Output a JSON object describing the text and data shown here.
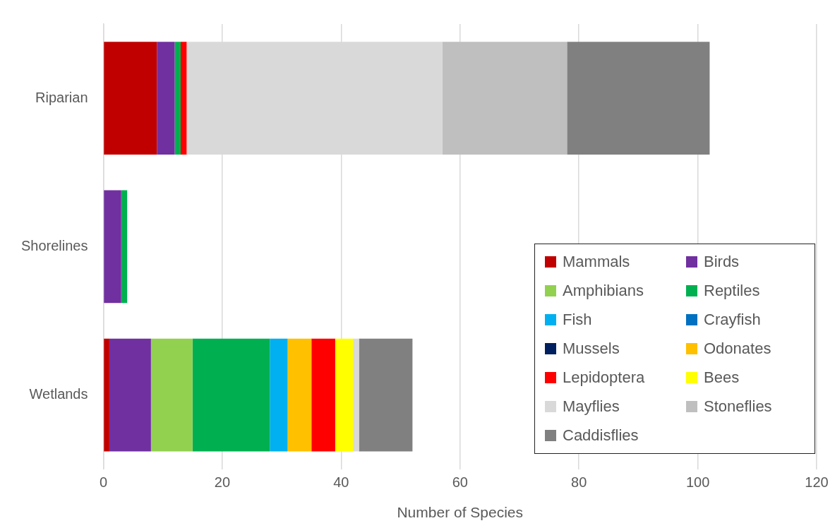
{
  "chart_data": {
    "type": "bar",
    "orientation": "horizontal",
    "stacked": true,
    "xlabel": "Number of Species",
    "categories": [
      "Riparian",
      "Shorelines",
      "Wetlands"
    ],
    "xlim": [
      0,
      120
    ],
    "xticks": [
      0,
      20,
      40,
      60,
      80,
      100,
      120
    ],
    "grid": "x",
    "legend": "bottom right",
    "series": [
      {
        "name": "Mammals",
        "color": "#c00000",
        "values": [
          9,
          0,
          1
        ]
      },
      {
        "name": "Birds",
        "color": "#7030a0",
        "values": [
          3,
          3,
          7
        ]
      },
      {
        "name": "Amphibians",
        "color": "#92d050",
        "values": [
          0,
          0,
          7
        ]
      },
      {
        "name": "Reptiles",
        "color": "#00b050",
        "values": [
          1,
          1,
          13
        ]
      },
      {
        "name": "Fish",
        "color": "#00b0f0",
        "values": [
          0,
          0,
          3
        ]
      },
      {
        "name": "Crayfish",
        "color": "#0070c0",
        "values": [
          0,
          0,
          0
        ]
      },
      {
        "name": "Mussels",
        "color": "#002060",
        "values": [
          0,
          0,
          0
        ]
      },
      {
        "name": "Odonates",
        "color": "#ffc000",
        "values": [
          0,
          0,
          4
        ]
      },
      {
        "name": "Lepidoptera",
        "color": "#ff0000",
        "values": [
          1,
          0,
          4
        ]
      },
      {
        "name": "Bees",
        "color": "#ffff00",
        "values": [
          0,
          0,
          3
        ]
      },
      {
        "name": "Mayflies",
        "color": "#d9d9d9",
        "values": [
          43,
          0,
          1
        ]
      },
      {
        "name": "Stoneflies",
        "color": "#bfbfbf",
        "values": [
          21,
          0,
          0
        ]
      },
      {
        "name": "Caddisflies",
        "color": "#808080",
        "values": [
          24,
          0,
          9
        ]
      }
    ]
  }
}
